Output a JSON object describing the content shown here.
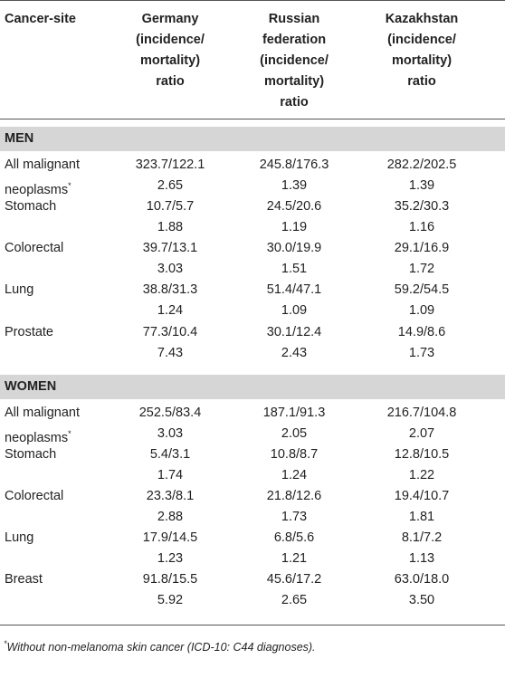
{
  "table": {
    "header": {
      "site": "Cancer-site",
      "columns": [
        [
          "Germany",
          "(incidence/",
          "mortality)",
          "ratio"
        ],
        [
          "Russian",
          "federation",
          "(incidence/",
          "mortality)",
          "ratio"
        ],
        [
          "Kazakhstan",
          "(incidence/",
          "mortality)",
          "ratio"
        ]
      ]
    },
    "sections": [
      {
        "title": "MEN",
        "rows": [
          {
            "label": [
              "All malignant",
              "neoplasms"
            ],
            "marker": "*",
            "cells": [
              [
                "323.7/122.1",
                "2.65"
              ],
              [
                "245.8/176.3",
                "1.39"
              ],
              [
                "282.2/202.5",
                "1.39"
              ]
            ]
          },
          {
            "label": [
              "Stomach"
            ],
            "cells": [
              [
                "10.7/5.7",
                "1.88"
              ],
              [
                "24.5/20.6",
                "1.19"
              ],
              [
                "35.2/30.3",
                "1.16"
              ]
            ]
          },
          {
            "label": [
              "Colorectal"
            ],
            "cells": [
              [
                "39.7/13.1",
                "3.03"
              ],
              [
                "30.0/19.9",
                "1.51"
              ],
              [
                "29.1/16.9",
                "1.72"
              ]
            ]
          },
          {
            "label": [
              "Lung"
            ],
            "cells": [
              [
                "38.8/31.3",
                "1.24"
              ],
              [
                "51.4/47.1",
                "1.09"
              ],
              [
                "59.2/54.5",
                "1.09"
              ]
            ]
          },
          {
            "label": [
              "Prostate"
            ],
            "cells": [
              [
                "77.3/10.4",
                "7.43"
              ],
              [
                "30.1/12.4",
                "2.43"
              ],
              [
                "14.9/8.6",
                "1.73"
              ]
            ]
          }
        ]
      },
      {
        "title": "WOMEN",
        "rows": [
          {
            "label": [
              "All malignant",
              "neoplasms"
            ],
            "marker": "*",
            "cells": [
              [
                "252.5/83.4",
                "3.03"
              ],
              [
                "187.1/91.3",
                "2.05"
              ],
              [
                "216.7/104.8",
                "2.07"
              ]
            ]
          },
          {
            "label": [
              "Stomach"
            ],
            "cells": [
              [
                "5.4/3.1",
                "1.74"
              ],
              [
                "10.8/8.7",
                "1.24"
              ],
              [
                "12.8/10.5",
                "1.22"
              ]
            ]
          },
          {
            "label": [
              "Colorectal"
            ],
            "cells": [
              [
                "23.3/8.1",
                "2.88"
              ],
              [
                "21.8/12.6",
                "1.73"
              ],
              [
                "19.4/10.7",
                "1.81"
              ]
            ]
          },
          {
            "label": [
              "Lung"
            ],
            "cells": [
              [
                "17.9/14.5",
                "1.23"
              ],
              [
                "6.8/5.6",
                "1.21"
              ],
              [
                "8.1/7.2",
                "1.13"
              ]
            ]
          },
          {
            "label": [
              "Breast"
            ],
            "cells": [
              [
                "91.8/15.5",
                "5.92"
              ],
              [
                "45.6/17.2",
                "2.65"
              ],
              [
                "63.0/18.0",
                "3.50"
              ]
            ]
          }
        ]
      }
    ],
    "footnote": {
      "marker": "*",
      "text": "Without non-melanoma skin cancer (ICD-10: C44 diagnoses)."
    }
  }
}
